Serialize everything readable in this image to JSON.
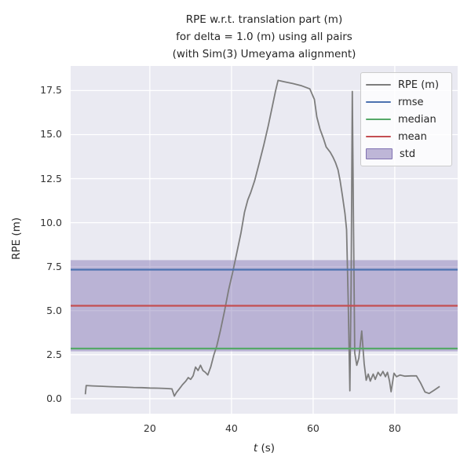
{
  "title": {
    "line1": "RPE w.r.t. translation part (m)",
    "line2": "for delta = 1.0 (m) using all pairs",
    "line3": "(with Sim(3) Umeyama alignment)"
  },
  "axes": {
    "ylabel": "RPE (m)",
    "xlabel_variable": "t",
    "xlabel_unit": " (s)"
  },
  "legend": {
    "items": [
      {
        "label": "RPE (m)",
        "type": "line",
        "color": "#7d7d7d"
      },
      {
        "label": "rmse",
        "type": "line",
        "color": "#4c72b0"
      },
      {
        "label": "median",
        "type": "line",
        "color": "#55a868"
      },
      {
        "label": "mean",
        "type": "line",
        "color": "#c44e52"
      },
      {
        "label": "std",
        "type": "patch",
        "color": "#8172b2"
      }
    ]
  },
  "colors": {
    "axes_bg": "#eaeaf2",
    "grid": "#ffffff",
    "rpe_line": "#7d7d7d",
    "rmse": "#4c72b0",
    "median": "#55a868",
    "mean": "#c44e52",
    "std_fill": "#8172b2",
    "text": "#262626"
  },
  "chart_data": {
    "type": "line",
    "title": "RPE w.r.t. translation part (m) for delta = 1.0 (m) using all pairs (with Sim(3) Umeyama alignment)",
    "xlabel": "t (s)",
    "ylabel": "RPE (m)",
    "x_range": [
      0.6,
      95.4
    ],
    "y_range": [
      -0.85,
      18.9
    ],
    "x_ticks": [
      20,
      40,
      60,
      80
    ],
    "y_ticks": [
      0.0,
      2.5,
      5.0,
      7.5,
      10.0,
      12.5,
      15.0,
      17.5
    ],
    "grid": true,
    "legend_position": "upper right",
    "stats": {
      "rmse": 7.33,
      "mean": 5.28,
      "median": 2.85,
      "std": 2.59
    },
    "series": [
      {
        "name": "RPE (m)",
        "points": [
          [
            4.2,
            0.25
          ],
          [
            4.4,
            0.75
          ],
          [
            6,
            0.73
          ],
          [
            8,
            0.71
          ],
          [
            10,
            0.69
          ],
          [
            12,
            0.67
          ],
          [
            14,
            0.66
          ],
          [
            16,
            0.64
          ],
          [
            18,
            0.63
          ],
          [
            20,
            0.61
          ],
          [
            22,
            0.6
          ],
          [
            24,
            0.58
          ],
          [
            25.4,
            0.56
          ],
          [
            26.0,
            0.15
          ],
          [
            26.5,
            0.35
          ],
          [
            27.2,
            0.55
          ],
          [
            28.0,
            0.8
          ],
          [
            28.8,
            1.0
          ],
          [
            29.4,
            1.2
          ],
          [
            30.0,
            1.1
          ],
          [
            30.6,
            1.3
          ],
          [
            31.2,
            1.8
          ],
          [
            31.8,
            1.6
          ],
          [
            32.4,
            1.9
          ],
          [
            33.0,
            1.6
          ],
          [
            33.6,
            1.5
          ],
          [
            34.2,
            1.35
          ],
          [
            34.9,
            1.8
          ],
          [
            35.7,
            2.5
          ],
          [
            36.4,
            3.0
          ],
          [
            37.3,
            3.9
          ],
          [
            38.3,
            5.0
          ],
          [
            39.3,
            6.2
          ],
          [
            40.3,
            7.2
          ],
          [
            41.3,
            8.3
          ],
          [
            42.3,
            9.4
          ],
          [
            43.2,
            10.6
          ],
          [
            44.0,
            11.3
          ],
          [
            44.7,
            11.7
          ],
          [
            45.7,
            12.4
          ],
          [
            46.8,
            13.4
          ],
          [
            47.9,
            14.4
          ],
          [
            49.0,
            15.5
          ],
          [
            50.0,
            16.6
          ],
          [
            50.8,
            17.5
          ],
          [
            51.4,
            18.08
          ],
          [
            53.0,
            18.0
          ],
          [
            55.0,
            17.9
          ],
          [
            57.2,
            17.77
          ],
          [
            59.2,
            17.6
          ],
          [
            60.3,
            17.0
          ],
          [
            60.9,
            16.0
          ],
          [
            61.7,
            15.3
          ],
          [
            62.5,
            14.8
          ],
          [
            63.2,
            14.3
          ],
          [
            64.2,
            14.0
          ],
          [
            64.9,
            13.7
          ],
          [
            65.5,
            13.4
          ],
          [
            66.1,
            13.0
          ],
          [
            66.6,
            12.4
          ],
          [
            67.2,
            11.5
          ],
          [
            67.8,
            10.5
          ],
          [
            68.2,
            9.6
          ],
          [
            68.6,
            5.5
          ],
          [
            69.0,
            0.45
          ],
          [
            69.3,
            6.5
          ],
          [
            69.6,
            17.45
          ],
          [
            69.9,
            9.5
          ],
          [
            70.2,
            2.6
          ],
          [
            70.7,
            1.9
          ],
          [
            71.2,
            2.3
          ],
          [
            71.9,
            3.85
          ],
          [
            72.5,
            2.0
          ],
          [
            73.0,
            1.05
          ],
          [
            73.5,
            1.4
          ],
          [
            74.0,
            1.0
          ],
          [
            74.7,
            1.4
          ],
          [
            75.2,
            1.1
          ],
          [
            75.9,
            1.5
          ],
          [
            76.5,
            1.3
          ],
          [
            77.1,
            1.55
          ],
          [
            77.7,
            1.25
          ],
          [
            78.2,
            1.5
          ],
          [
            78.7,
            1.0
          ],
          [
            79.1,
            0.4
          ],
          [
            79.8,
            1.45
          ],
          [
            80.4,
            1.25
          ],
          [
            81.3,
            1.35
          ],
          [
            82.5,
            1.28
          ],
          [
            84.0,
            1.3
          ],
          [
            85.3,
            1.3
          ],
          [
            86.3,
            0.9
          ],
          [
            87.4,
            0.38
          ],
          [
            88.4,
            0.3
          ],
          [
            89.6,
            0.48
          ],
          [
            91.0,
            0.7
          ]
        ]
      }
    ]
  }
}
